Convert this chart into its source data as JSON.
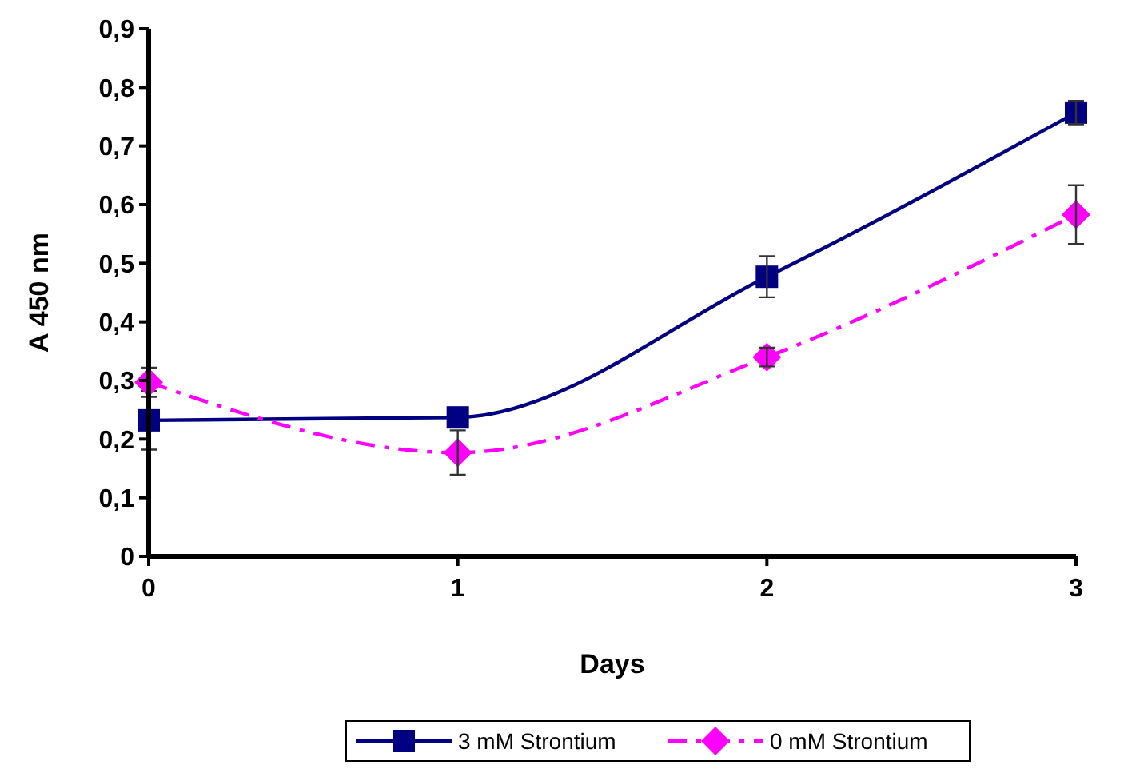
{
  "chart_data": {
    "type": "line",
    "xlabel": "Days",
    "ylabel": "A 450 nm",
    "x": [
      0,
      1,
      2,
      3
    ],
    "xlim": [
      0,
      3
    ],
    "xticks": [
      0,
      1,
      2,
      3
    ],
    "ylim": [
      0,
      0.9
    ],
    "yticks": [
      {
        "value": 0,
        "label": "0"
      },
      {
        "value": 0.1,
        "label": "0,1"
      },
      {
        "value": 0.2,
        "label": "0,2"
      },
      {
        "value": 0.3,
        "label": "0,3"
      },
      {
        "value": 0.4,
        "label": "0,4"
      },
      {
        "value": 0.5,
        "label": "0,5"
      },
      {
        "value": 0.6,
        "label": "0,6"
      },
      {
        "value": 0.7,
        "label": "0,7"
      },
      {
        "value": 0.8,
        "label": "0,8"
      },
      {
        "value": 0.9,
        "label": "0,9"
      }
    ],
    "grid": false,
    "legend": "bottom",
    "series": [
      {
        "name": "3 mM Strontium",
        "color": "#000080",
        "marker": "square",
        "line_style": "solid",
        "values": [
          0.232,
          0.237,
          0.477,
          0.757
        ],
        "errors": [
          0.05,
          null,
          0.035,
          0.02
        ]
      },
      {
        "name": "0 mM Strontium",
        "color": "#ff00ff",
        "marker": "diamond",
        "line_style": "dashed",
        "values": [
          0.297,
          0.177,
          0.34,
          0.583
        ],
        "errors": [
          0.025,
          0.038,
          0.016,
          0.05
        ]
      }
    ]
  }
}
